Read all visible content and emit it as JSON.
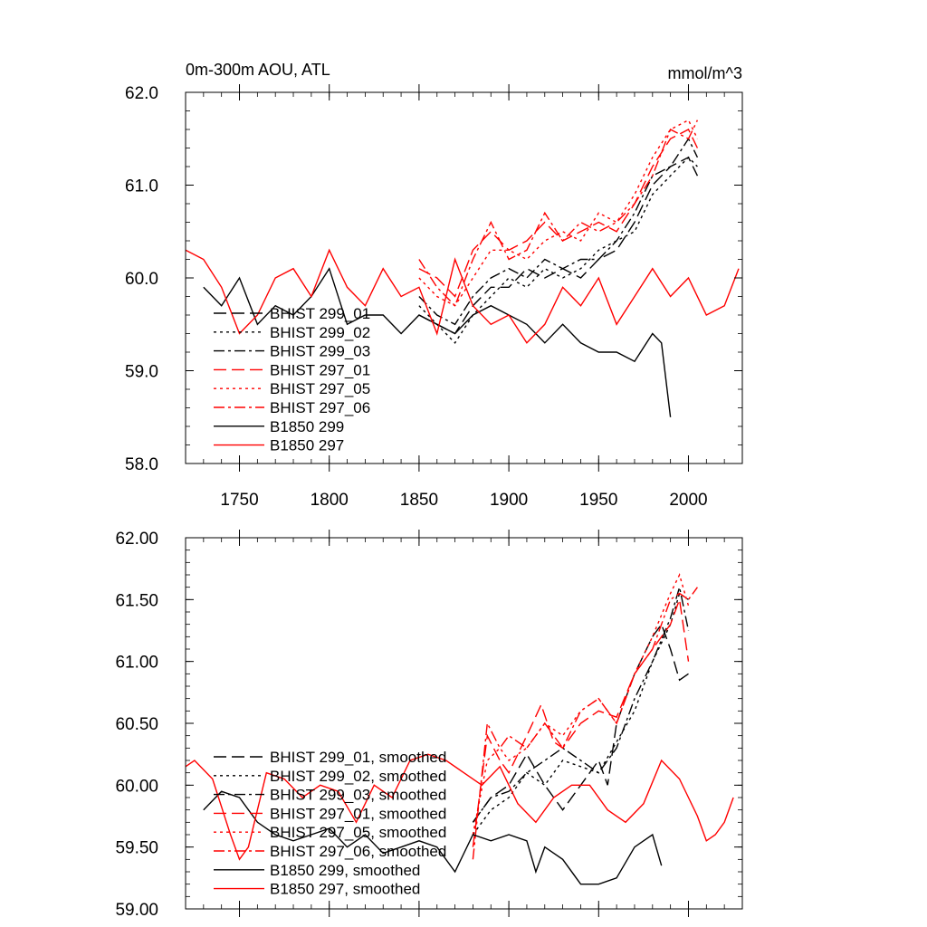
{
  "chart_data": [
    {
      "type": "line",
      "title": "0m-300m AOU, ATL",
      "units_label": "mmol/m^3",
      "xlim": [
        1720,
        2030
      ],
      "ylim": [
        58.0,
        62.0
      ],
      "x_ticks": [
        1750,
        1800,
        1850,
        1900,
        1950,
        2000
      ],
      "x_tick_labels": [
        "1750",
        "1800",
        "1850",
        "1900",
        "1950",
        "2000"
      ],
      "y_ticks": [
        58.0,
        59.0,
        60.0,
        61.0,
        62.0
      ],
      "y_tick_labels": [
        "58.0",
        "59.0",
        "60.0",
        "61.0",
        "62.0"
      ],
      "legend_position": "bottom-left",
      "series": [
        {
          "name": "BHIST 299_01",
          "color": "#000000",
          "dash": "longdash",
          "x": [
            1850,
            1860,
            1870,
            1880,
            1890,
            1900,
            1910,
            1920,
            1930,
            1940,
            1950,
            1960,
            1970,
            1980,
            1990,
            2000,
            2005
          ],
          "y": [
            59.6,
            59.5,
            59.4,
            59.7,
            59.9,
            59.9,
            60.1,
            60.0,
            60.1,
            60.0,
            60.2,
            60.3,
            60.6,
            61.0,
            61.2,
            61.3,
            61.1
          ]
        },
        {
          "name": "BHIST 299_02",
          "color": "#000000",
          "dash": "dot",
          "x": [
            1850,
            1860,
            1870,
            1880,
            1890,
            1900,
            1910,
            1920,
            1930,
            1940,
            1950,
            1960,
            1970,
            1980,
            1990,
            2000,
            2005
          ],
          "y": [
            59.7,
            59.5,
            59.3,
            59.6,
            59.8,
            60.0,
            59.9,
            60.1,
            60.0,
            60.1,
            60.3,
            60.4,
            60.5,
            60.9,
            61.1,
            61.3,
            61.2
          ]
        },
        {
          "name": "BHIST 299_03",
          "color": "#000000",
          "dash": "dashdot",
          "x": [
            1850,
            1860,
            1870,
            1880,
            1890,
            1900,
            1910,
            1920,
            1930,
            1940,
            1950,
            1960,
            1970,
            1980,
            1990,
            2000,
            2005
          ],
          "y": [
            59.8,
            59.6,
            59.5,
            59.8,
            60.0,
            60.1,
            60.0,
            60.2,
            60.1,
            60.2,
            60.2,
            60.4,
            60.7,
            61.1,
            61.2,
            61.5,
            61.3
          ]
        },
        {
          "name": "BHIST 297_01",
          "color": "#ff0000",
          "dash": "longdash",
          "x": [
            1850,
            1860,
            1870,
            1880,
            1890,
            1900,
            1910,
            1920,
            1930,
            1940,
            1950,
            1960,
            1970,
            1980,
            1990,
            2000,
            2005
          ],
          "y": [
            60.1,
            60.0,
            59.8,
            60.3,
            60.5,
            60.3,
            60.4,
            60.6,
            60.4,
            60.5,
            60.6,
            60.5,
            60.8,
            61.2,
            61.5,
            61.6,
            61.4
          ]
        },
        {
          "name": "BHIST 297_05",
          "color": "#ff0000",
          "dash": "dot",
          "x": [
            1850,
            1860,
            1870,
            1880,
            1890,
            1900,
            1910,
            1920,
            1930,
            1940,
            1950,
            1960,
            1970,
            1980,
            1990,
            2000,
            2005
          ],
          "y": [
            60.0,
            59.8,
            59.7,
            60.0,
            60.3,
            60.3,
            60.2,
            60.4,
            60.5,
            60.4,
            60.7,
            60.6,
            60.9,
            61.3,
            61.6,
            61.7,
            61.5
          ]
        },
        {
          "name": "BHIST 297_06",
          "color": "#ff0000",
          "dash": "dashdot",
          "x": [
            1850,
            1860,
            1870,
            1880,
            1890,
            1900,
            1910,
            1920,
            1930,
            1940,
            1950,
            1960,
            1970,
            1980,
            1990,
            2000,
            2005
          ],
          "y": [
            60.2,
            59.9,
            59.7,
            60.2,
            60.6,
            60.2,
            60.3,
            60.7,
            60.4,
            60.6,
            60.5,
            60.6,
            60.8,
            61.1,
            61.6,
            61.5,
            61.7
          ]
        },
        {
          "name": "B1850 299",
          "color": "#000000",
          "dash": "solid",
          "x": [
            1730,
            1740,
            1750,
            1760,
            1770,
            1780,
            1790,
            1800,
            1810,
            1820,
            1830,
            1840,
            1850,
            1860,
            1870,
            1880,
            1890,
            1900,
            1910,
            1920,
            1930,
            1940,
            1950,
            1960,
            1970,
            1980,
            1985,
            1990
          ],
          "y": [
            59.9,
            59.7,
            60.0,
            59.5,
            59.7,
            59.6,
            59.8,
            60.1,
            59.5,
            59.6,
            59.6,
            59.4,
            59.6,
            59.5,
            59.4,
            59.6,
            59.7,
            59.6,
            59.5,
            59.3,
            59.5,
            59.3,
            59.2,
            59.2,
            59.1,
            59.4,
            59.3,
            58.5
          ]
        },
        {
          "name": "B1850 297",
          "color": "#ff0000",
          "dash": "solid",
          "x": [
            1720,
            1730,
            1740,
            1750,
            1760,
            1770,
            1780,
            1790,
            1800,
            1810,
            1820,
            1830,
            1840,
            1850,
            1860,
            1870,
            1880,
            1890,
            1900,
            1910,
            1920,
            1930,
            1940,
            1950,
            1960,
            1970,
            1980,
            1990,
            2000,
            2010,
            2020,
            2028
          ],
          "y": [
            60.3,
            60.2,
            59.9,
            59.4,
            59.6,
            60.0,
            60.1,
            59.8,
            60.3,
            59.9,
            59.7,
            60.1,
            59.8,
            59.9,
            59.4,
            60.2,
            59.7,
            59.5,
            59.6,
            59.3,
            59.5,
            59.9,
            59.7,
            60.0,
            59.5,
            59.8,
            60.1,
            59.8,
            60.0,
            59.6,
            59.7,
            60.1
          ]
        }
      ],
      "legend": [
        {
          "label": "BHIST 299_01",
          "color": "#000000",
          "dash": "longdash"
        },
        {
          "label": "BHIST 299_02",
          "color": "#000000",
          "dash": "dot"
        },
        {
          "label": "BHIST 299_03",
          "color": "#000000",
          "dash": "dashdot"
        },
        {
          "label": "BHIST 297_01",
          "color": "#ff0000",
          "dash": "longdash"
        },
        {
          "label": "BHIST 297_05",
          "color": "#ff0000",
          "dash": "dot"
        },
        {
          "label": "BHIST 297_06",
          "color": "#ff0000",
          "dash": "dashdot"
        },
        {
          "label": "B1850 299",
          "color": "#000000",
          "dash": "solid"
        },
        {
          "label": "B1850 297",
          "color": "#ff0000",
          "dash": "solid"
        }
      ]
    },
    {
      "type": "line",
      "title": "",
      "xlim": [
        1720,
        2030
      ],
      "ylim": [
        59.0,
        62.0
      ],
      "x_ticks": [
        1750,
        1800,
        1850,
        1900,
        1950,
        2000
      ],
      "y_ticks": [
        59.0,
        59.5,
        60.0,
        60.5,
        61.0,
        61.5,
        62.0
      ],
      "y_tick_labels": [
        "59.00",
        "59.50",
        "60.00",
        "60.50",
        "61.00",
        "61.50",
        "62.00"
      ],
      "legend_position": "bottom-left",
      "series": [
        {
          "name": "BHIST 299_01, smoothed",
          "color": "#000000",
          "dash": "longdash",
          "x": [
            1880,
            1890,
            1900,
            1910,
            1920,
            1930,
            1940,
            1950,
            1955,
            1960,
            1970,
            1980,
            1985,
            1990,
            1995,
            2000
          ],
          "y": [
            59.7,
            59.9,
            60.0,
            60.25,
            60.0,
            59.8,
            60.0,
            60.2,
            60.0,
            60.5,
            60.9,
            61.2,
            61.3,
            61.1,
            60.85,
            60.9
          ]
        },
        {
          "name": "BHIST 299_02, smoothed",
          "color": "#000000",
          "dash": "dot",
          "x": [
            1880,
            1890,
            1900,
            1910,
            1920,
            1930,
            1940,
            1950,
            1960,
            1970,
            1980,
            1990,
            1995,
            2000
          ],
          "y": [
            59.6,
            59.8,
            59.9,
            60.1,
            60.0,
            60.2,
            60.15,
            60.1,
            60.35,
            60.6,
            61.0,
            61.3,
            61.55,
            61.5
          ]
        },
        {
          "name": "BHIST 299_03, smoothed",
          "color": "#000000",
          "dash": "dashdot",
          "x": [
            1880,
            1890,
            1900,
            1910,
            1920,
            1930,
            1940,
            1950,
            1960,
            1970,
            1980,
            1990,
            1995,
            2000
          ],
          "y": [
            59.7,
            59.9,
            59.95,
            60.1,
            60.2,
            60.3,
            60.2,
            60.1,
            60.3,
            60.7,
            61.0,
            61.35,
            61.6,
            61.25
          ]
        },
        {
          "name": "BHIST 297_01, smoothed",
          "color": "#ff0000",
          "dash": "longdash",
          "x": [
            1880,
            1888,
            1895,
            1900,
            1910,
            1918,
            1925,
            1930,
            1940,
            1950,
            1960,
            1970,
            1980,
            1990,
            1995,
            2000
          ],
          "y": [
            59.5,
            60.4,
            60.2,
            60.1,
            60.4,
            60.65,
            60.35,
            60.3,
            60.5,
            60.6,
            60.55,
            60.9,
            61.1,
            61.3,
            61.5,
            61.0
          ]
        },
        {
          "name": "BHIST 297_05, smoothed",
          "color": "#ff0000",
          "dash": "dot",
          "x": [
            1880,
            1888,
            1895,
            1900,
            1910,
            1920,
            1930,
            1940,
            1950,
            1960,
            1970,
            1980,
            1990,
            1995,
            2000
          ],
          "y": [
            59.6,
            60.2,
            60.3,
            60.2,
            60.3,
            60.5,
            60.4,
            60.6,
            60.7,
            60.5,
            60.9,
            61.2,
            61.55,
            61.7,
            61.45
          ]
        },
        {
          "name": "BHIST 297_06, smoothed",
          "color": "#ff0000",
          "dash": "dashdot",
          "x": [
            1880,
            1888,
            1895,
            1900,
            1910,
            1920,
            1930,
            1940,
            1950,
            1960,
            1970,
            1980,
            1990,
            1995,
            2000,
            2005
          ],
          "y": [
            59.4,
            60.5,
            60.3,
            60.4,
            60.3,
            60.5,
            60.3,
            60.6,
            60.7,
            60.5,
            60.9,
            61.1,
            61.5,
            61.55,
            61.5,
            61.6
          ]
        },
        {
          "name": "B1850 299, smoothed",
          "color": "#000000",
          "dash": "solid",
          "x": [
            1730,
            1740,
            1750,
            1760,
            1770,
            1780,
            1790,
            1800,
            1810,
            1820,
            1830,
            1840,
            1850,
            1860,
            1870,
            1880,
            1890,
            1900,
            1910,
            1915,
            1920,
            1930,
            1940,
            1950,
            1960,
            1970,
            1975,
            1980,
            1985
          ],
          "y": [
            59.8,
            59.95,
            59.9,
            59.7,
            59.6,
            59.55,
            59.6,
            59.65,
            59.5,
            59.6,
            59.45,
            59.5,
            59.55,
            59.5,
            59.3,
            59.6,
            59.55,
            59.6,
            59.55,
            59.3,
            59.5,
            59.4,
            59.2,
            59.2,
            59.25,
            59.5,
            59.55,
            59.6,
            59.35
          ]
        },
        {
          "name": "B1850 297, smoothed",
          "color": "#ff0000",
          "dash": "solid",
          "x": [
            1720,
            1725,
            1735,
            1745,
            1750,
            1755,
            1765,
            1775,
            1785,
            1795,
            1805,
            1815,
            1825,
            1835,
            1845,
            1855,
            1865,
            1875,
            1885,
            1895,
            1905,
            1915,
            1925,
            1935,
            1945,
            1955,
            1965,
            1975,
            1985,
            1995,
            2005,
            2010,
            2015,
            2020,
            2025
          ],
          "y": [
            60.15,
            60.2,
            60.05,
            59.6,
            59.4,
            59.5,
            60.1,
            60.05,
            59.9,
            60.0,
            59.95,
            59.7,
            60.0,
            59.9,
            60.2,
            60.25,
            60.2,
            60.1,
            60.0,
            60.15,
            59.85,
            59.7,
            59.9,
            60.0,
            60.0,
            59.8,
            59.7,
            59.85,
            60.2,
            60.05,
            59.75,
            59.55,
            59.6,
            59.7,
            59.9
          ]
        }
      ],
      "legend": [
        {
          "label": "BHIST 299_01, smoothed",
          "color": "#000000",
          "dash": "longdash"
        },
        {
          "label": "BHIST 299_02, smoothed",
          "color": "#000000",
          "dash": "dot"
        },
        {
          "label": "BHIST 299_03, smoothed",
          "color": "#000000",
          "dash": "dashdot"
        },
        {
          "label": "BHIST 297_01, smoothed",
          "color": "#ff0000",
          "dash": "longdash"
        },
        {
          "label": "BHIST 297_05, smoothed",
          "color": "#ff0000",
          "dash": "dot"
        },
        {
          "label": "BHIST 297_06, smoothed",
          "color": "#ff0000",
          "dash": "dashdot"
        },
        {
          "label": "B1850 299, smoothed",
          "color": "#000000",
          "dash": "solid"
        },
        {
          "label": "B1850 297, smoothed",
          "color": "#ff0000",
          "dash": "solid"
        }
      ]
    }
  ]
}
